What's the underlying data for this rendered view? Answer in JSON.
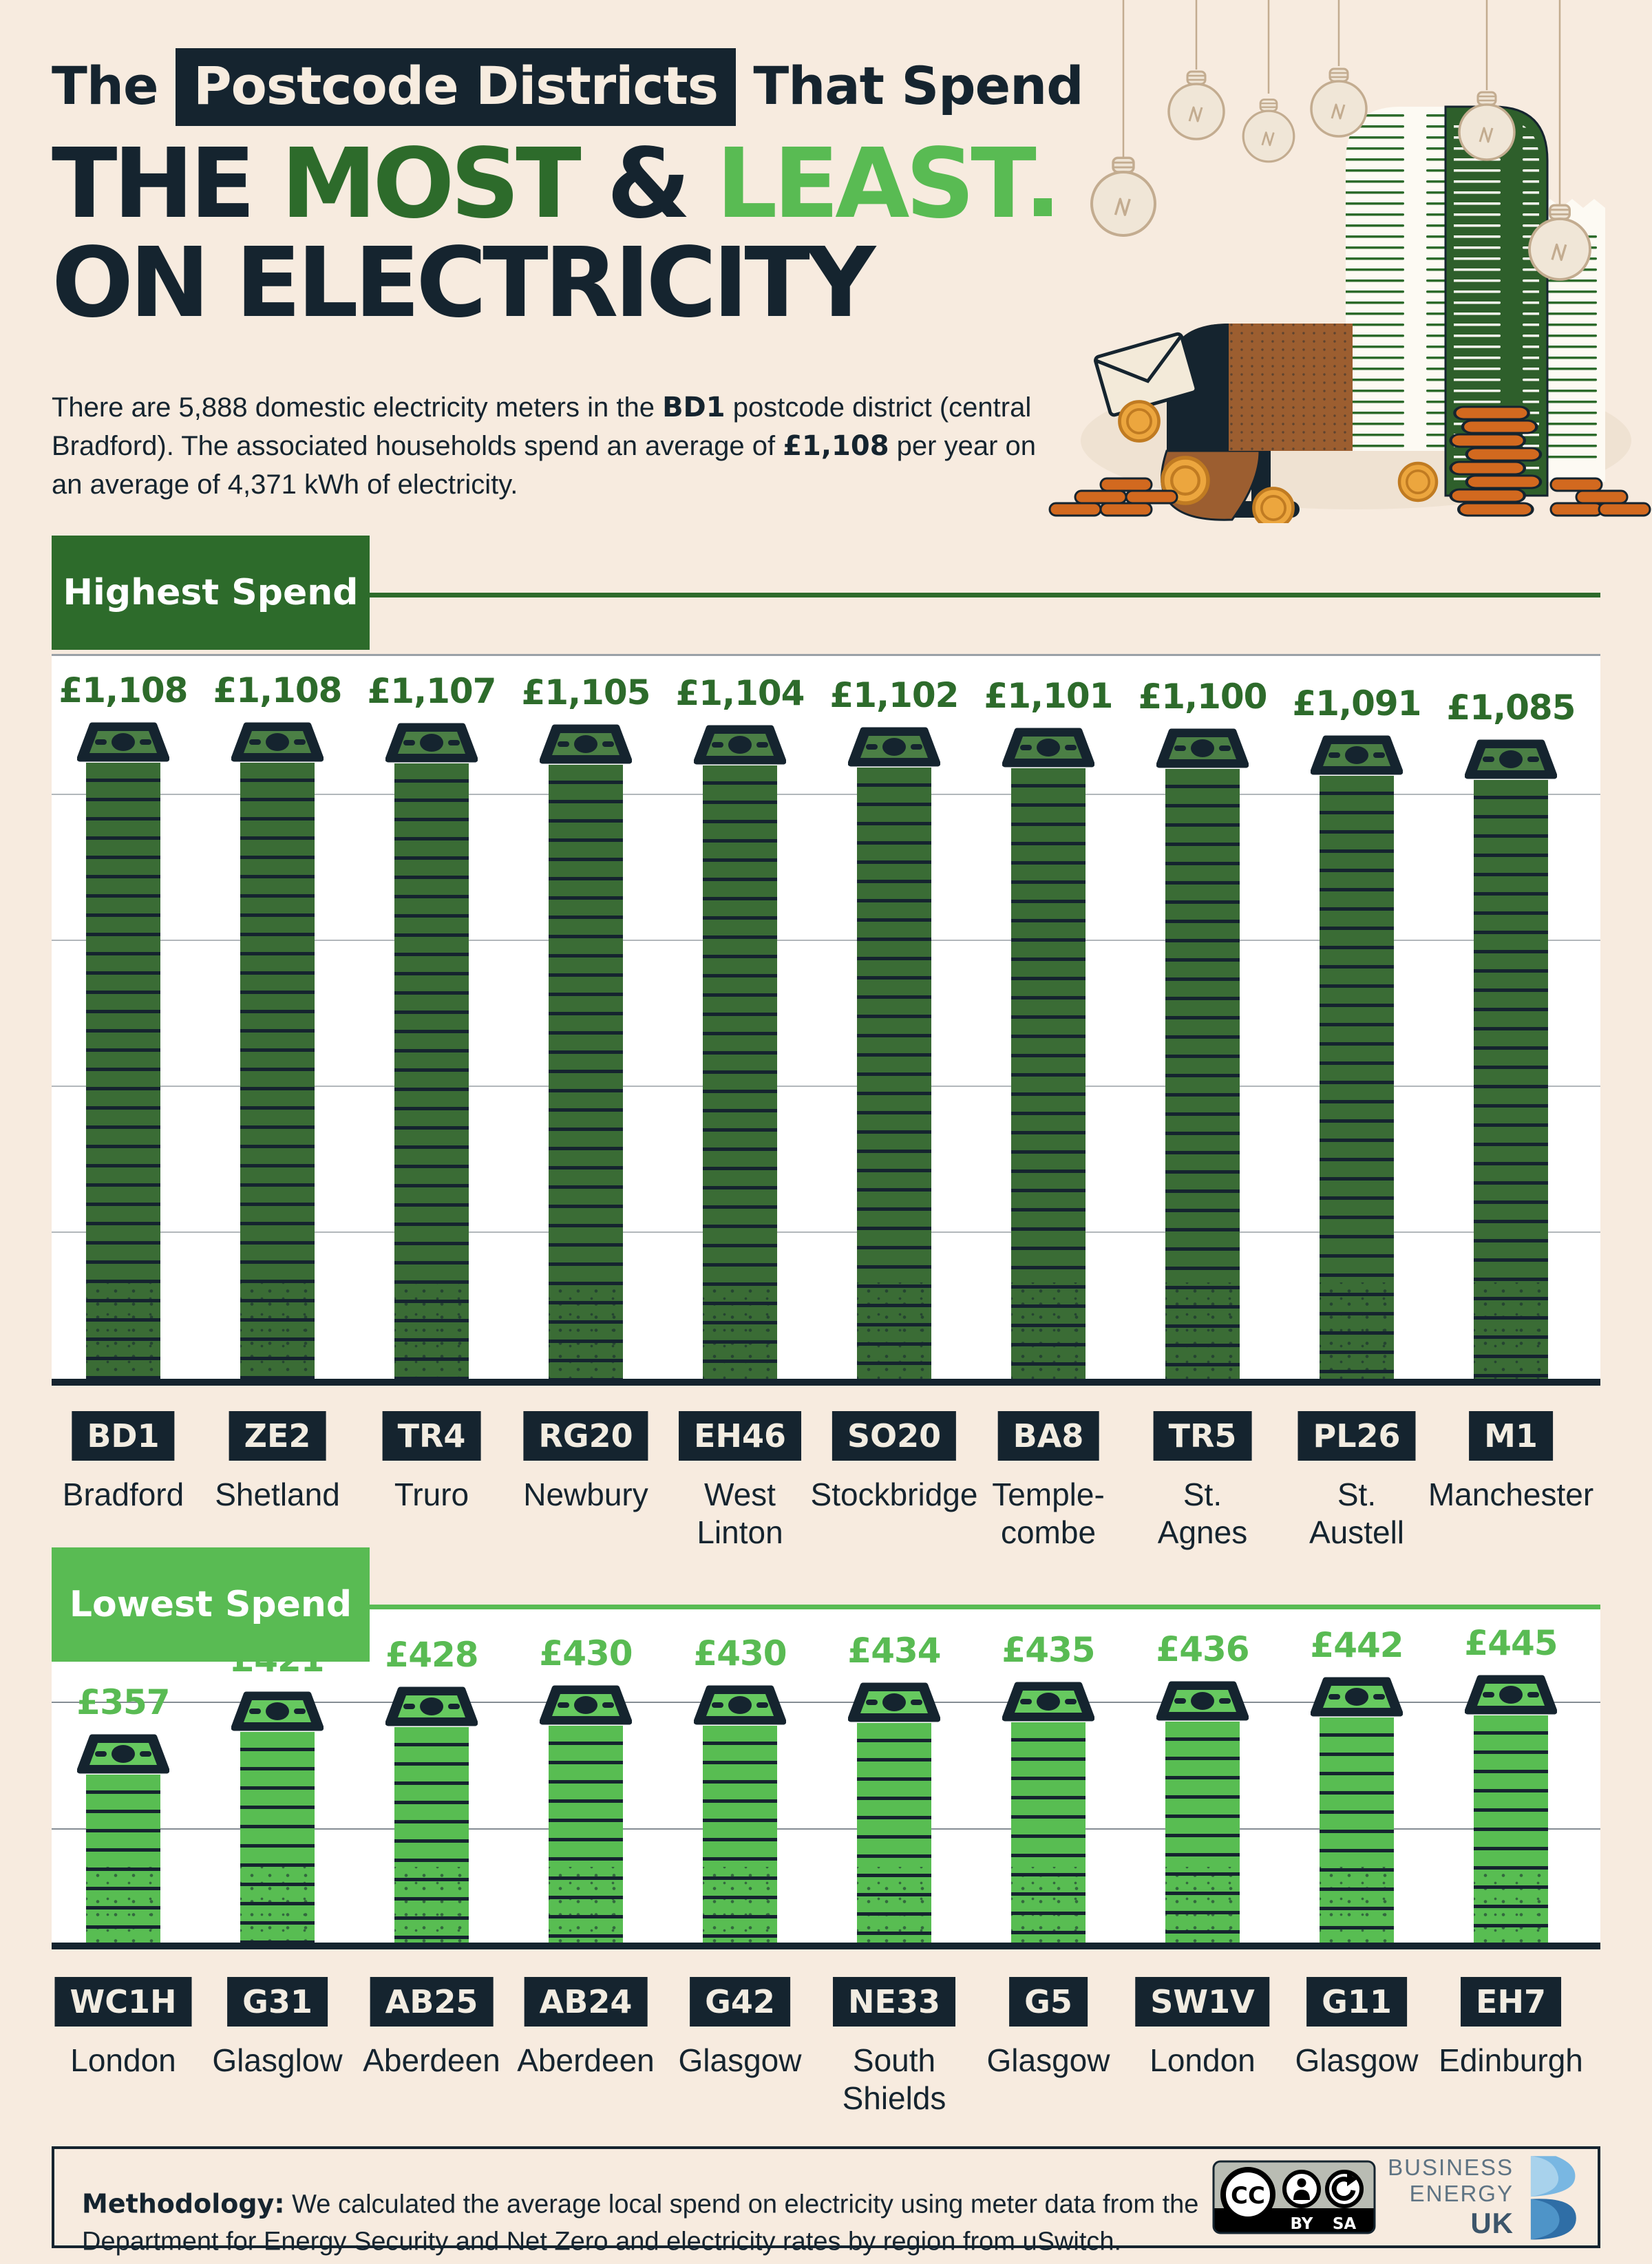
{
  "page_title": "The Postcode Districts That Spend THE MOST & LEAST ON ELECTRICITY",
  "colors": {
    "background": "#f7ebdf",
    "navy": "#15242f",
    "dark_green": "#2d6b2b",
    "light_green": "#59bb53",
    "white": "#ffffff"
  },
  "header": {
    "title_line1": {
      "pre": "The ",
      "highlight": "Postcode Districts",
      "post": " That Spend"
    },
    "title_line2": {
      "t1": "THE ",
      "t2": "MOST",
      "t3": " & ",
      "t4": "LEAST"
    },
    "title_line3": "ON ELECTRICITY",
    "intro": {
      "p1": "There are 5,888 domestic electricity meters in the ",
      "b1": "BD1",
      "p2": " postcode district (central Bradford). The associated households spend an average of ",
      "b2": "£1,108",
      "p3": " per year on an average of 4,371 kWh of electricity."
    }
  },
  "illustration": {
    "icons": [
      "lightbulb-icon",
      "mailbox-icon",
      "envelope-icon",
      "coin-icon",
      "electricity-bill-receipt-icon",
      "coin-stack-icon"
    ]
  },
  "chart_data": [
    {
      "type": "bar",
      "title": "Highest Spend",
      "unit": "£ per year",
      "bar_style": "stack-of-banknotes",
      "categories": [
        "BD1",
        "ZE2",
        "TR4",
        "RG20",
        "EH46",
        "SO20",
        "BA8",
        "TR5",
        "PL26",
        "M1"
      ],
      "places": [
        "Bradford",
        "Shetland",
        "Truro",
        "Newbury",
        "West\nLinton",
        "Stockbridge",
        "Temple-\ncombe",
        "St.\nAgnes",
        "St.\nAustell",
        "Manchester"
      ],
      "values": [
        1108,
        1108,
        1107,
        1105,
        1104,
        1102,
        1101,
        1100,
        1091,
        1085
      ],
      "value_labels": [
        "£1,108",
        "£1,108",
        "£1,107",
        "£1,105",
        "£1,104",
        "£1,102",
        "£1,101",
        "£1,100",
        "£1,091",
        "£1,085"
      ],
      "accent": "#2d6b2b",
      "bar_color": "#3a6c35",
      "note_face": "#4b7f45"
    },
    {
      "type": "bar",
      "title": "Lowest Spend",
      "unit": "£ per year",
      "bar_style": "stack-of-banknotes",
      "categories": [
        "WC1H",
        "G31",
        "AB25",
        "AB24",
        "G42",
        "NE33",
        "G5",
        "SW1V",
        "G11",
        "EH7"
      ],
      "places": [
        "London",
        "Glasglow",
        "Aberdeen",
        "Aberdeen",
        "Glasgow",
        "South\nShields",
        "Glasgow",
        "London",
        "Glasgow",
        "Edinburgh"
      ],
      "values": [
        357,
        421,
        428,
        430,
        430,
        434,
        435,
        436,
        442,
        445
      ],
      "value_labels": [
        "£357",
        "£421",
        "£428",
        "£430",
        "£430",
        "£434",
        "£435",
        "£436",
        "£442",
        "£445"
      ],
      "accent": "#59bb53",
      "bar_color": "#58bd52",
      "note_face": "#66c95f"
    }
  ],
  "footer": {
    "methodology_bold": "Methodology:",
    "methodology_text": " We calculated the average local spend on electricity using meter data from the Department for Energy Security and Net Zero and electricity rates by region from uSwitch.",
    "license": {
      "cc": "CC",
      "by": "BY",
      "sa": "SA"
    },
    "brand": {
      "l1": "BUSINESS",
      "l2": "ENERGY",
      "l3": "UK"
    }
  }
}
